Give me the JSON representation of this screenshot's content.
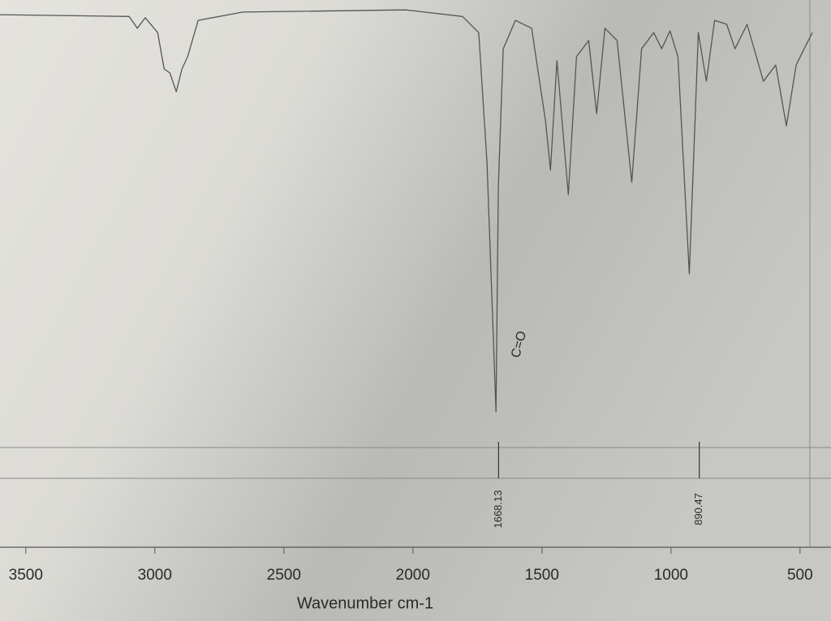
{
  "chart_data": {
    "type": "line",
    "x_label": "Wavenumber cm-1",
    "x": [
      3600,
      3100,
      3068,
      3037,
      2989,
      2964,
      2942,
      2917,
      2895,
      2873,
      2832,
      2659,
      2028,
      1808,
      1745,
      1713,
      1678,
      1669,
      1650,
      1603,
      1540,
      1486,
      1467,
      1442,
      1398,
      1366,
      1319,
      1288,
      1256,
      1209,
      1152,
      1114,
      1067,
      1036,
      1004,
      973,
      929,
      894,
      863,
      831,
      784,
      752,
      705,
      642,
      594,
      553,
      515,
      484,
      452
    ],
    "values": [
      98.5,
      98.1,
      95.4,
      97.8,
      94.4,
      86.1,
      85.2,
      80.9,
      86.1,
      88.9,
      97.2,
      99.1,
      99.6,
      98.1,
      94.4,
      64.8,
      7.8,
      59.3,
      90.7,
      97.2,
      95.4,
      74.1,
      63,
      88,
      57.4,
      88.9,
      92.6,
      75.9,
      95.4,
      92.6,
      60.2,
      90.7,
      94.4,
      90.7,
      94.8,
      88.9,
      39.3,
      94.4,
      83.3,
      97.2,
      96.3,
      90.7,
      96.3,
      83.3,
      87,
      73.1,
      87,
      90.7,
      94.4
    ],
    "color": "#555555",
    "xlim": [
      3600,
      380
    ],
    "xticks": [
      3500,
      3000,
      2500,
      2000,
      1500,
      1000,
      500
    ],
    "ylim": [
      0,
      100
    ],
    "peaks": [
      1668.13,
      890.47
    ],
    "annotation": "C=O"
  }
}
